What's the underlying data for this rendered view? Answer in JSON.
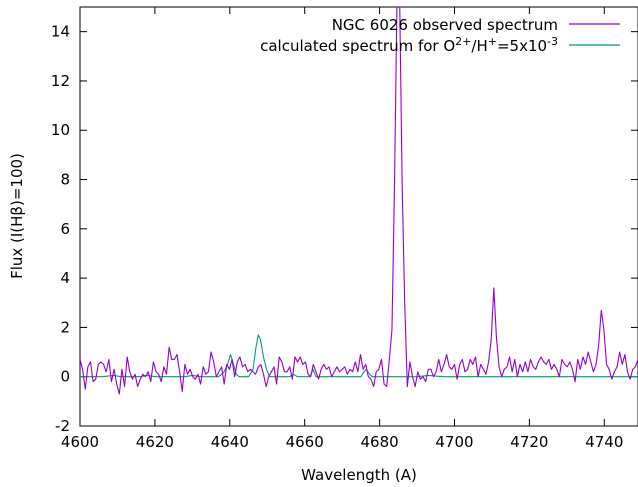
{
  "chart_data": {
    "type": "line",
    "title": "",
    "xlabel": "Wavelength (A)",
    "ylabel": "Flux (I(Hβ)=100)",
    "xlim": [
      4600,
      4749
    ],
    "ylim": [
      -2,
      15
    ],
    "x_ticks": [
      4600,
      4620,
      4640,
      4660,
      4680,
      4700,
      4720,
      4740
    ],
    "y_ticks": [
      -2,
      0,
      2,
      4,
      6,
      8,
      10,
      12,
      14
    ],
    "grid": false,
    "legend_position": "top-right",
    "legend": [
      {
        "label": "NGC 6026 observed spectrum",
        "color": "#9400d3"
      },
      {
        "label_parts": [
          "calculated spectrum for O",
          "2+",
          "/H",
          "+",
          "=5x10",
          "-3"
        ],
        "color": "#009e73"
      }
    ],
    "series": [
      {
        "name": "NGC 6026 observed spectrum",
        "color": "#9400d3",
        "points": [
          [
            4600,
            0.7
          ],
          [
            4600.7,
            0.3
          ],
          [
            4601.4,
            -0.5
          ],
          [
            4602.1,
            0.4
          ],
          [
            4602.8,
            0.6
          ],
          [
            4603.5,
            -0.2
          ],
          [
            4604.2,
            -0.1
          ],
          [
            4604.9,
            0.5
          ],
          [
            4605.6,
            0.6
          ],
          [
            4606.3,
            0.5
          ],
          [
            4607,
            0.2
          ],
          [
            4607.7,
            0.7
          ],
          [
            4608.4,
            -0.2
          ],
          [
            4609.1,
            0.3
          ],
          [
            4609.8,
            -0.3
          ],
          [
            4610.5,
            -0.7
          ],
          [
            4611.2,
            0.3
          ],
          [
            4611.9,
            -0.4
          ],
          [
            4612.6,
            0.8
          ],
          [
            4613.3,
            0.2
          ],
          [
            4614,
            -0.1
          ],
          [
            4614.7,
            0.1
          ],
          [
            4615.4,
            -0.4
          ],
          [
            4616.1,
            -0.1
          ],
          [
            4616.8,
            0.1
          ],
          [
            4617.5,
            0.0
          ],
          [
            4618.2,
            0.2
          ],
          [
            4618.9,
            -0.2
          ],
          [
            4619.6,
            0.6
          ],
          [
            4620.3,
            0.2
          ],
          [
            4621,
            0.1
          ],
          [
            4621.7,
            -0.2
          ],
          [
            4622.4,
            0.4
          ],
          [
            4623.1,
            0.1
          ],
          [
            4623.8,
            1.2
          ],
          [
            4624.5,
            0.7
          ],
          [
            4625.2,
            0.7
          ],
          [
            4625.9,
            0.9
          ],
          [
            4626.6,
            0.2
          ],
          [
            4627.3,
            -0.6
          ],
          [
            4628,
            0.5
          ],
          [
            4628.7,
            0.1
          ],
          [
            4629.4,
            0.3
          ],
          [
            4630.1,
            0.0
          ],
          [
            4630.8,
            -0.1
          ],
          [
            4631.5,
            0.1
          ],
          [
            4632.2,
            -0.3
          ],
          [
            4632.9,
            0.4
          ],
          [
            4633.6,
            0.1
          ],
          [
            4634.3,
            0.2
          ],
          [
            4635,
            1.0
          ],
          [
            4635.7,
            0.6
          ],
          [
            4636.4,
            0.0
          ],
          [
            4637.1,
            0.2
          ],
          [
            4637.8,
            0.4
          ],
          [
            4638.5,
            -0.3
          ],
          [
            4639.2,
            0.5
          ],
          [
            4639.9,
            0.3
          ],
          [
            4640.6,
            0.7
          ],
          [
            4641.3,
            0.0
          ],
          [
            4642,
            0.6
          ],
          [
            4642.7,
            0.8
          ],
          [
            4643.4,
            0.4
          ],
          [
            4644.1,
            0.5
          ],
          [
            4644.8,
            0.2
          ],
          [
            4645.5,
            0.3
          ],
          [
            4646.2,
            0.2
          ],
          [
            4646.9,
            0.1
          ],
          [
            4647.6,
            0.4
          ],
          [
            4648.3,
            0.5
          ],
          [
            4649,
            0.1
          ],
          [
            4649.7,
            -0.4
          ],
          [
            4650.4,
            0.0
          ],
          [
            4651.1,
            0.2
          ],
          [
            4651.8,
            0.4
          ],
          [
            4652.5,
            -0.3
          ],
          [
            4653.2,
            0.8
          ],
          [
            4653.9,
            0.6
          ],
          [
            4654.6,
            0.2
          ],
          [
            4655.3,
            0.2
          ],
          [
            4656,
            0.4
          ],
          [
            4656.7,
            -0.1
          ],
          [
            4657.4,
            0.8
          ],
          [
            4658.1,
            0.6
          ],
          [
            4658.8,
            0.8
          ],
          [
            4659.5,
            0.5
          ],
          [
            4660.2,
            0.6
          ],
          [
            4660.9,
            0.1
          ],
          [
            4661.6,
            0.0
          ],
          [
            4662.3,
            0.5
          ],
          [
            4663,
            0.2
          ],
          [
            4663.7,
            -0.1
          ],
          [
            4664.4,
            0.3
          ],
          [
            4665.1,
            0.5
          ],
          [
            4665.8,
            0.3
          ],
          [
            4666.5,
            0.4
          ],
          [
            4667.2,
            0.0
          ],
          [
            4667.9,
            0.2
          ],
          [
            4668.6,
            0.4
          ],
          [
            4669.3,
            0.2
          ],
          [
            4670,
            0.3
          ],
          [
            4670.7,
            0.4
          ],
          [
            4671.4,
            0.1
          ],
          [
            4672.1,
            0.3
          ],
          [
            4672.8,
            0.2
          ],
          [
            4673.5,
            0.6
          ],
          [
            4674.2,
            0.2
          ],
          [
            4674.9,
            0.9
          ],
          [
            4675.6,
            0.3
          ],
          [
            4676.3,
            0.5
          ],
          [
            4677,
            0.0
          ],
          [
            4677.7,
            -0.1
          ],
          [
            4678.4,
            -0.4
          ],
          [
            4679.1,
            0.2
          ],
          [
            4679.8,
            0.3
          ],
          [
            4680.5,
            0.7
          ],
          [
            4681.2,
            -0.3
          ],
          [
            4681.9,
            -0.4
          ],
          [
            4682.6,
            0.7
          ],
          [
            4683.3,
            1.9
          ],
          [
            4684,
            8.0
          ],
          [
            4684.7,
            16.0
          ],
          [
            4685.3,
            16.0
          ],
          [
            4686,
            8.0
          ],
          [
            4686.7,
            3.0
          ],
          [
            4687.4,
            -0.4
          ],
          [
            4688.1,
            0.6
          ],
          [
            4688.8,
            0.0
          ],
          [
            4689.5,
            -0.4
          ],
          [
            4690.2,
            0.2
          ],
          [
            4690.9,
            -0.1
          ],
          [
            4691.6,
            0.0
          ],
          [
            4692.3,
            -0.2
          ],
          [
            4693,
            0.3
          ],
          [
            4693.7,
            0.3
          ],
          [
            4694.4,
            0.0
          ],
          [
            4695.1,
            0.2
          ],
          [
            4695.8,
            0.7
          ],
          [
            4696.5,
            0.2
          ],
          [
            4697.2,
            0.5
          ],
          [
            4697.9,
            0.9
          ],
          [
            4698.6,
            0.4
          ],
          [
            4699.3,
            0.3
          ],
          [
            4700,
            0.5
          ],
          [
            4700.7,
            -0.1
          ],
          [
            4701.4,
            0.5
          ],
          [
            4702.1,
            0.7
          ],
          [
            4702.8,
            0.2
          ],
          [
            4703.5,
            0.3
          ],
          [
            4704.2,
            0.7
          ],
          [
            4704.9,
            0.5
          ],
          [
            4705.6,
            0.8
          ],
          [
            4706.3,
            0.0
          ],
          [
            4707,
            0.5
          ],
          [
            4707.7,
            0.3
          ],
          [
            4708.4,
            0.1
          ],
          [
            4709.1,
            0.6
          ],
          [
            4709.8,
            1.5
          ],
          [
            4710.5,
            3.6
          ],
          [
            4711.2,
            1.6
          ],
          [
            4711.9,
            0.4
          ],
          [
            4712.6,
            0.0
          ],
          [
            4713.3,
            0.3
          ],
          [
            4714,
            0.4
          ],
          [
            4714.7,
            0.8
          ],
          [
            4715.4,
            0.2
          ],
          [
            4716.1,
            0.7
          ],
          [
            4716.8,
            0.0
          ],
          [
            4717.5,
            0.5
          ],
          [
            4718.2,
            0.2
          ],
          [
            4718.9,
            0.6
          ],
          [
            4719.6,
            0.2
          ],
          [
            4720.3,
            0.7
          ],
          [
            4721,
            0.4
          ],
          [
            4721.7,
            0.3
          ],
          [
            4722.4,
            0.6
          ],
          [
            4723.1,
            0.8
          ],
          [
            4723.8,
            0.6
          ],
          [
            4724.5,
            0.5
          ],
          [
            4725.2,
            0.7
          ],
          [
            4725.9,
            0.3
          ],
          [
            4726.6,
            0.5
          ],
          [
            4727.3,
            0.3
          ],
          [
            4728,
            0.0
          ],
          [
            4728.7,
            0.7
          ],
          [
            4729.4,
            0.5
          ],
          [
            4730.1,
            0.4
          ],
          [
            4730.8,
            0.6
          ],
          [
            4731.5,
            0.3
          ],
          [
            4732.2,
            -0.2
          ],
          [
            4732.9,
            0.7
          ],
          [
            4733.6,
            0.3
          ],
          [
            4734.3,
            0.8
          ],
          [
            4735,
            0.5
          ],
          [
            4735.7,
            1.0
          ],
          [
            4736.4,
            0.6
          ],
          [
            4737.1,
            0.2
          ],
          [
            4737.8,
            0.5
          ],
          [
            4738.5,
            1.3
          ],
          [
            4739.2,
            2.7
          ],
          [
            4739.9,
            1.9
          ],
          [
            4740.6,
            0.5
          ],
          [
            4741.3,
            0.3
          ],
          [
            4742,
            -0.1
          ],
          [
            4742.7,
            0.2
          ],
          [
            4743.4,
            0.4
          ],
          [
            4744.1,
            1.0
          ],
          [
            4744.8,
            0.5
          ],
          [
            4745.5,
            0.9
          ],
          [
            4746.2,
            0.2
          ],
          [
            4746.9,
            -0.1
          ],
          [
            4747.6,
            0.3
          ],
          [
            4748.3,
            0.4
          ],
          [
            4749,
            0.7
          ]
        ]
      },
      {
        "name": "calculated spectrum for O2+/H+=5x10-3",
        "color": "#009e73",
        "points": [
          [
            4600,
            0.0
          ],
          [
            4606,
            0.0
          ],
          [
            4609,
            0.05
          ],
          [
            4611,
            0.0
          ],
          [
            4616,
            0.0
          ],
          [
            4618,
            0.05
          ],
          [
            4620,
            0.0
          ],
          [
            4628,
            0.0
          ],
          [
            4630,
            0.05
          ],
          [
            4632,
            0.0
          ],
          [
            4637,
            0.0
          ],
          [
            4638.5,
            0.2
          ],
          [
            4639.4,
            0.5
          ],
          [
            4640.2,
            0.9
          ],
          [
            4641,
            0.5
          ],
          [
            4641.7,
            0.1
          ],
          [
            4642.5,
            0.0
          ],
          [
            4645,
            0.0
          ],
          [
            4646.2,
            0.3
          ],
          [
            4647,
            1.2
          ],
          [
            4647.6,
            1.7
          ],
          [
            4648.2,
            1.5
          ],
          [
            4649,
            0.8
          ],
          [
            4649.8,
            0.3
          ],
          [
            4650.6,
            0.0
          ],
          [
            4656,
            0.0
          ],
          [
            4657,
            0.1
          ],
          [
            4658,
            0.0
          ],
          [
            4661.5,
            0.0
          ],
          [
            4662.2,
            0.3
          ],
          [
            4663,
            0.0
          ],
          [
            4675,
            0.0
          ],
          [
            4675.8,
            0.2
          ],
          [
            4676.5,
            0.3
          ],
          [
            4677.3,
            0.1
          ],
          [
            4678,
            0.0
          ],
          [
            4690,
            0.0
          ],
          [
            4693,
            0.05
          ],
          [
            4697,
            0.0
          ],
          [
            4749,
            0.0
          ]
        ]
      }
    ]
  }
}
